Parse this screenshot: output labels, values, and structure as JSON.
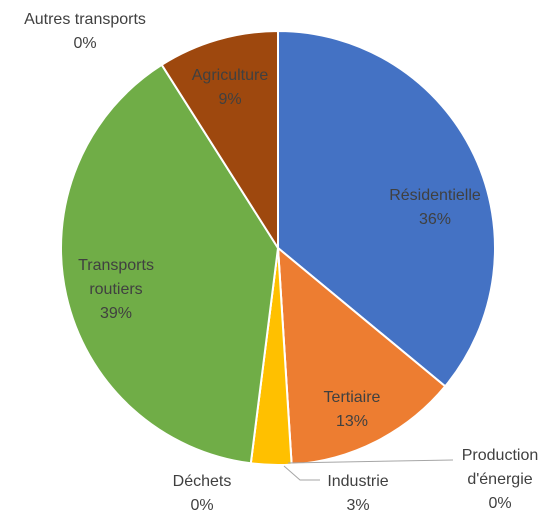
{
  "chart_data": {
    "type": "pie",
    "categories": [
      "Résidentielle",
      "Tertiaire",
      "Production d'énergie",
      "Industrie",
      "Déchets",
      "Transports routiers",
      "Agriculture",
      "Autres transports"
    ],
    "values": [
      36,
      13,
      0,
      3,
      0,
      39,
      9,
      0
    ],
    "value_labels": [
      "36%",
      "13%",
      "0%",
      "3%",
      "0%",
      "39%",
      "9%",
      "0%"
    ],
    "colors": [
      "#4472c4",
      "#ed7d31",
      "#a5a5a5",
      "#ffc000",
      "#5b9bd5",
      "#70ad47",
      "#9e480e",
      "#264478"
    ]
  }
}
